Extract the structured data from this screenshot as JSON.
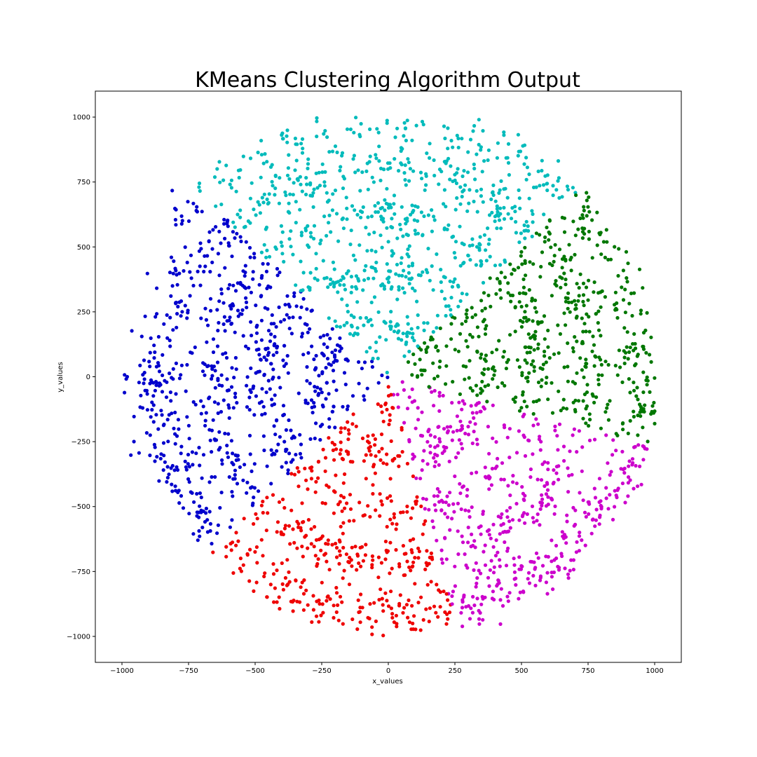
{
  "chart_data": {
    "type": "scatter",
    "title": "KMeans Clustering Algorithm Output",
    "xlabel": "x_values",
    "ylabel": "y_values",
    "xlim": [
      -1100,
      1100
    ],
    "ylim": [
      -1100,
      1100
    ],
    "xticks": [
      -1000,
      -750,
      -500,
      -250,
      0,
      250,
      500,
      750,
      1000
    ],
    "xtick_labels": [
      "−1000",
      "−750",
      "−500",
      "−250",
      "0",
      "250",
      "500",
      "750",
      "1000"
    ],
    "yticks": [
      -1000,
      -750,
      -500,
      -250,
      0,
      250,
      500,
      750,
      1000
    ],
    "ytick_labels": [
      "−1000",
      "−750",
      "−500",
      "−250",
      "0",
      "250",
      "500",
      "750",
      "1000"
    ],
    "grid": false,
    "legend": null,
    "spiral": {
      "arms": 5,
      "ring_spacing": 200,
      "r_min": 60,
      "r_max": 1000,
      "point_count": 3000,
      "noise": 30,
      "clip": [
        -1000,
        1000
      ]
    },
    "series": [
      {
        "cluster": 0,
        "color": "#0000cc",
        "angle_range_deg": [
          135,
          225
        ]
      },
      {
        "cluster": 1,
        "color": "#00bbbb",
        "angle_range_deg": [
          45,
          135
        ]
      },
      {
        "cluster": 2,
        "color": "#007700",
        "angle_range_deg": [
          -15,
          45
        ]
      },
      {
        "cluster": 3,
        "color": "#cc00cc",
        "angle_range_deg": [
          -75,
          -15
        ]
      },
      {
        "cluster": 4,
        "color": "#ee0000",
        "angle_range_deg": [
          -135,
          -75
        ]
      }
    ]
  }
}
